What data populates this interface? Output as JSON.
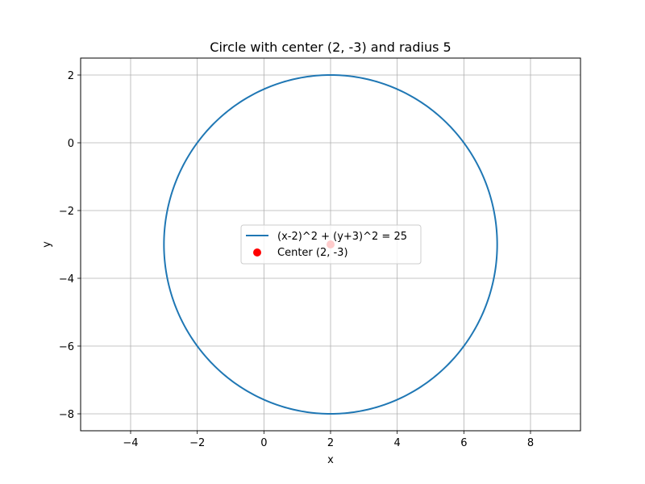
{
  "chart_data": {
    "type": "line",
    "title": "Circle with center (2, -3) and radius 5",
    "xlabel": "x",
    "ylabel": "y",
    "xlim": [
      -5.5,
      9.5
    ],
    "ylim": [
      -8.5,
      2.5
    ],
    "grid": true,
    "legend_position": "center",
    "x_ticks": [
      -4,
      -2,
      0,
      2,
      4,
      6,
      8
    ],
    "y_ticks": [
      -8,
      -6,
      -4,
      -2,
      0,
      2
    ],
    "x_tick_labels": [
      "−4",
      "−2",
      "0",
      "2",
      "4",
      "6",
      "8"
    ],
    "y_tick_labels": [
      "−8",
      "−6",
      "−4",
      "−2",
      "0",
      "2"
    ],
    "series": [
      {
        "name": "(x-2)^2 + (y+3)^2 = 25",
        "kind": "circle",
        "center": [
          2,
          -3
        ],
        "radius": 5,
        "color": "#1f77b4"
      },
      {
        "name": "Center (2, -3)",
        "kind": "scatter",
        "points": [
          [
            2,
            -3
          ]
        ],
        "color": "#ff0000"
      }
    ]
  }
}
